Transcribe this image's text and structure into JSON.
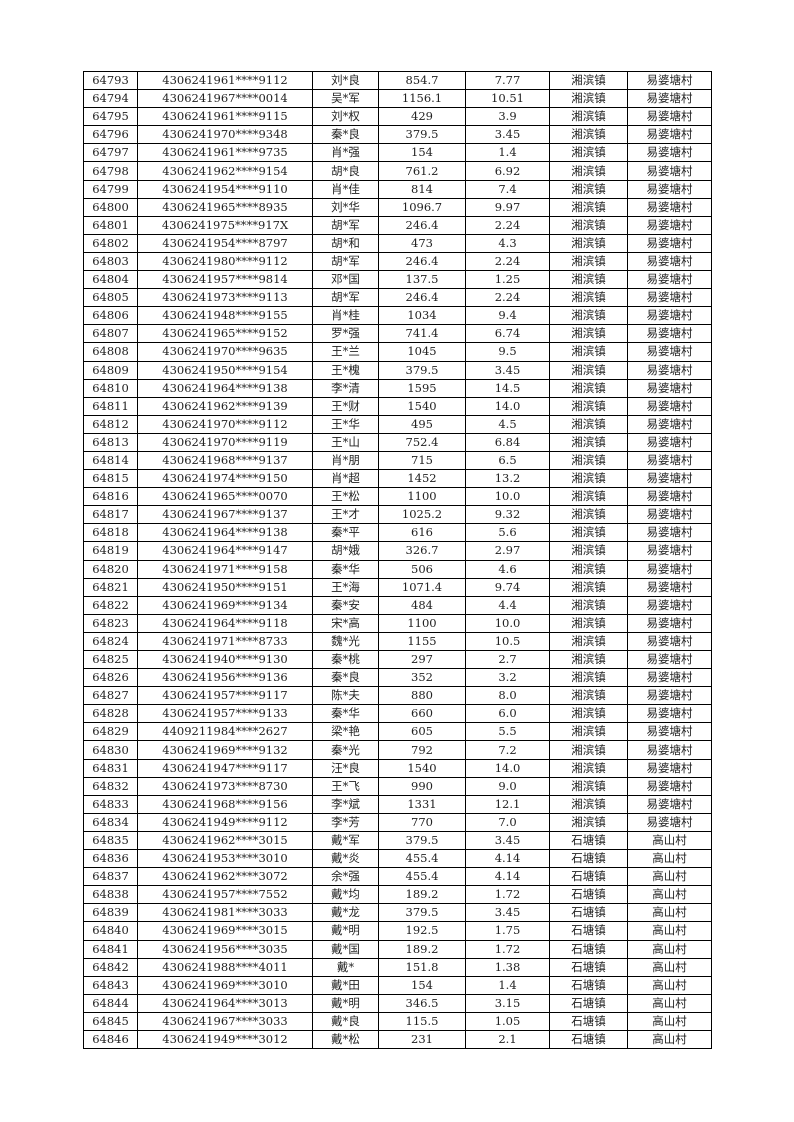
{
  "rows": [
    [
      "64793",
      "4306241961****9112",
      "刘*良",
      "854.7",
      "7.77",
      "湘滨镇",
      "易婆塘村"
    ],
    [
      "64794",
      "4306241967****0014",
      "吴*军",
      "1156.1",
      "10.51",
      "湘滨镇",
      "易婆塘村"
    ],
    [
      "64795",
      "4306241961****9115",
      "刘*权",
      "429",
      "3.9",
      "湘滨镇",
      "易婆塘村"
    ],
    [
      "64796",
      "4306241970****9348",
      "秦*良",
      "379.5",
      "3.45",
      "湘滨镇",
      "易婆塘村"
    ],
    [
      "64797",
      "4306241961****9735",
      "肖*强",
      "154",
      "1.4",
      "湘滨镇",
      "易婆塘村"
    ],
    [
      "64798",
      "4306241962****9154",
      "胡*良",
      "761.2",
      "6.92",
      "湘滨镇",
      "易婆塘村"
    ],
    [
      "64799",
      "4306241954****9110",
      "肖*佳",
      "814",
      "7.4",
      "湘滨镇",
      "易婆塘村"
    ],
    [
      "64800",
      "4306241965****8935",
      "刘*华",
      "1096.7",
      "9.97",
      "湘滨镇",
      "易婆塘村"
    ],
    [
      "64801",
      "4306241975****917X",
      "胡*军",
      "246.4",
      "2.24",
      "湘滨镇",
      "易婆塘村"
    ],
    [
      "64802",
      "4306241954****8797",
      "胡*和",
      "473",
      "4.3",
      "湘滨镇",
      "易婆塘村"
    ],
    [
      "64803",
      "4306241980****9112",
      "胡*军",
      "246.4",
      "2.24",
      "湘滨镇",
      "易婆塘村"
    ],
    [
      "64804",
      "4306241957****9814",
      "邓*国",
      "137.5",
      "1.25",
      "湘滨镇",
      "易婆塘村"
    ],
    [
      "64805",
      "4306241973****9113",
      "胡*军",
      "246.4",
      "2.24",
      "湘滨镇",
      "易婆塘村"
    ],
    [
      "64806",
      "4306241948****9155",
      "肖*桂",
      "1034",
      "9.4",
      "湘滨镇",
      "易婆塘村"
    ],
    [
      "64807",
      "4306241965****9152",
      "罗*强",
      "741.4",
      "6.74",
      "湘滨镇",
      "易婆塘村"
    ],
    [
      "64808",
      "4306241970****9635",
      "王*兰",
      "1045",
      "9.5",
      "湘滨镇",
      "易婆塘村"
    ],
    [
      "64809",
      "4306241950****9154",
      "王*槐",
      "379.5",
      "3.45",
      "湘滨镇",
      "易婆塘村"
    ],
    [
      "64810",
      "4306241964****9138",
      "李*清",
      "1595",
      "14.5",
      "湘滨镇",
      "易婆塘村"
    ],
    [
      "64811",
      "4306241962****9139",
      "王*财",
      "1540",
      "14.0",
      "湘滨镇",
      "易婆塘村"
    ],
    [
      "64812",
      "4306241970****9112",
      "王*华",
      "495",
      "4.5",
      "湘滨镇",
      "易婆塘村"
    ],
    [
      "64813",
      "4306241970****9119",
      "王*山",
      "752.4",
      "6.84",
      "湘滨镇",
      "易婆塘村"
    ],
    [
      "64814",
      "4306241968****9137",
      "肖*朋",
      "715",
      "6.5",
      "湘滨镇",
      "易婆塘村"
    ],
    [
      "64815",
      "4306241974****9150",
      "肖*超",
      "1452",
      "13.2",
      "湘滨镇",
      "易婆塘村"
    ],
    [
      "64816",
      "4306241965****0070",
      "王*松",
      "1100",
      "10.0",
      "湘滨镇",
      "易婆塘村"
    ],
    [
      "64817",
      "4306241967****9137",
      "王*才",
      "1025.2",
      "9.32",
      "湘滨镇",
      "易婆塘村"
    ],
    [
      "64818",
      "4306241964****9138",
      "秦*平",
      "616",
      "5.6",
      "湘滨镇",
      "易婆塘村"
    ],
    [
      "64819",
      "4306241964****9147",
      "胡*娥",
      "326.7",
      "2.97",
      "湘滨镇",
      "易婆塘村"
    ],
    [
      "64820",
      "4306241971****9158",
      "秦*华",
      "506",
      "4.6",
      "湘滨镇",
      "易婆塘村"
    ],
    [
      "64821",
      "4306241950****9151",
      "王*海",
      "1071.4",
      "9.74",
      "湘滨镇",
      "易婆塘村"
    ],
    [
      "64822",
      "4306241969****9134",
      "秦*安",
      "484",
      "4.4",
      "湘滨镇",
      "易婆塘村"
    ],
    [
      "64823",
      "4306241964****9118",
      "宋*高",
      "1100",
      "10.0",
      "湘滨镇",
      "易婆塘村"
    ],
    [
      "64824",
      "4306241971****8733",
      "魏*光",
      "1155",
      "10.5",
      "湘滨镇",
      "易婆塘村"
    ],
    [
      "64825",
      "4306241940****9130",
      "秦*桃",
      "297",
      "2.7",
      "湘滨镇",
      "易婆塘村"
    ],
    [
      "64826",
      "4306241956****9136",
      "秦*良",
      "352",
      "3.2",
      "湘滨镇",
      "易婆塘村"
    ],
    [
      "64827",
      "4306241957****9117",
      "陈*夫",
      "880",
      "8.0",
      "湘滨镇",
      "易婆塘村"
    ],
    [
      "64828",
      "4306241957****9133",
      "秦*华",
      "660",
      "6.0",
      "湘滨镇",
      "易婆塘村"
    ],
    [
      "64829",
      "4409211984****2627",
      "梁*艳",
      "605",
      "5.5",
      "湘滨镇",
      "易婆塘村"
    ],
    [
      "64830",
      "4306241969****9132",
      "秦*光",
      "792",
      "7.2",
      "湘滨镇",
      "易婆塘村"
    ],
    [
      "64831",
      "4306241947****9117",
      "汪*良",
      "1540",
      "14.0",
      "湘滨镇",
      "易婆塘村"
    ],
    [
      "64832",
      "4306241973****8730",
      "王*飞",
      "990",
      "9.0",
      "湘滨镇",
      "易婆塘村"
    ],
    [
      "64833",
      "4306241968****9156",
      "李*斌",
      "1331",
      "12.1",
      "湘滨镇",
      "易婆塘村"
    ],
    [
      "64834",
      "4306241949****9112",
      "李*芳",
      "770",
      "7.0",
      "湘滨镇",
      "易婆塘村"
    ],
    [
      "64835",
      "4306241962****3015",
      "戴*军",
      "379.5",
      "3.45",
      "石塘镇",
      "高山村"
    ],
    [
      "64836",
      "4306241953****3010",
      "戴*炎",
      "455.4",
      "4.14",
      "石塘镇",
      "高山村"
    ],
    [
      "64837",
      "4306241962****3072",
      "余*强",
      "455.4",
      "4.14",
      "石塘镇",
      "高山村"
    ],
    [
      "64838",
      "4306241957****7552",
      "戴*均",
      "189.2",
      "1.72",
      "石塘镇",
      "高山村"
    ],
    [
      "64839",
      "4306241981****3033",
      "戴*龙",
      "379.5",
      "3.45",
      "石塘镇",
      "高山村"
    ],
    [
      "64840",
      "4306241969****3015",
      "戴*明",
      "192.5",
      "1.75",
      "石塘镇",
      "高山村"
    ],
    [
      "64841",
      "4306241956****3035",
      "戴*国",
      "189.2",
      "1.72",
      "石塘镇",
      "高山村"
    ],
    [
      "64842",
      "4306241988****4011",
      "戴*",
      "151.8",
      "1.38",
      "石塘镇",
      "高山村"
    ],
    [
      "64843",
      "4306241969****3010",
      "戴*田",
      "154",
      "1.4",
      "石塘镇",
      "高山村"
    ],
    [
      "64844",
      "4306241964****3013",
      "戴*明",
      "346.5",
      "3.15",
      "石塘镇",
      "高山村"
    ],
    [
      "64845",
      "4306241967****3033",
      "戴*良",
      "115.5",
      "1.05",
      "石塘镇",
      "高山村"
    ],
    [
      "64846",
      "4306241949****3012",
      "戴*松",
      "231",
      "2.1",
      "石塘镇",
      "高山村"
    ]
  ]
}
